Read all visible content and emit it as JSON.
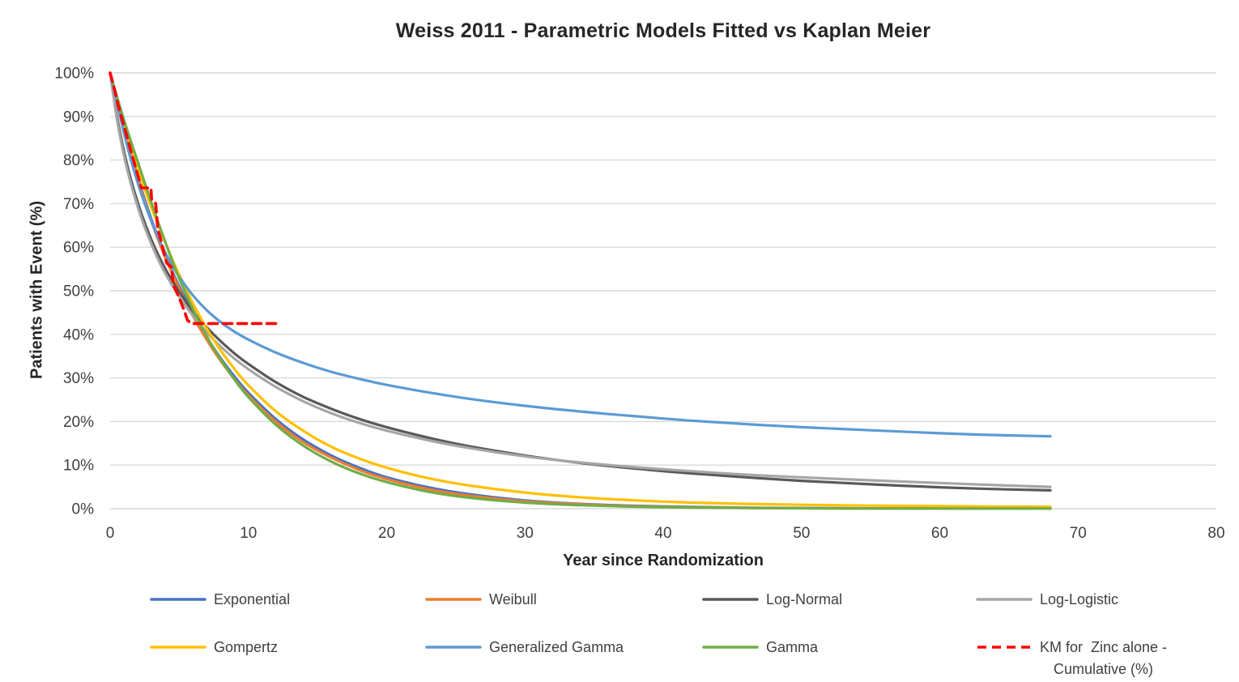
{
  "chart_data": {
    "type": "line",
    "title": "Weiss 2011 - Parametric Models Fitted vs Kaplan Meier",
    "xlabel": "Year since Randomization",
    "ylabel": "Patients with Event (%)",
    "xlim": [
      0,
      80
    ],
    "ylim": [
      0,
      100
    ],
    "x_ticks": [
      0,
      10,
      20,
      30,
      40,
      50,
      60,
      70,
      80
    ],
    "x_tick_labels": [
      "0",
      "10",
      "20",
      "30",
      "40",
      "50",
      "60",
      "70",
      "80"
    ],
    "y_ticks": [
      0,
      10,
      20,
      30,
      40,
      50,
      60,
      70,
      80,
      90,
      100
    ],
    "y_tick_labels": [
      "0%",
      "10%",
      "20%",
      "30%",
      "40%",
      "50%",
      "60%",
      "70%",
      "80%",
      "90%",
      "100%"
    ],
    "grid": "horizontal-only",
    "gridline_color": "#D9D9D9",
    "legend_position": "bottom",
    "series": [
      {
        "name": "Exponential",
        "color": "#4472C4",
        "width": 3.2,
        "smooth": true,
        "points": [
          [
            0,
            100
          ],
          [
            0.5,
            93.5
          ],
          [
            1,
            87
          ],
          [
            1.5,
            81.3
          ],
          [
            2,
            76
          ],
          [
            2.5,
            71
          ],
          [
            3,
            66.3
          ],
          [
            3.5,
            62
          ],
          [
            4,
            58
          ],
          [
            4.5,
            54.4
          ],
          [
            5,
            51
          ],
          [
            6,
            44.8
          ],
          [
            7,
            39.3
          ],
          [
            8,
            34.5
          ],
          [
            9,
            30.3
          ],
          [
            10,
            26.6
          ],
          [
            12,
            20.5
          ],
          [
            14,
            15.8
          ],
          [
            16,
            12.2
          ],
          [
            18,
            9.4
          ],
          [
            20,
            7.2
          ],
          [
            23,
            4.9
          ],
          [
            26,
            3.3
          ],
          [
            30,
            1.9
          ],
          [
            34,
            1.1
          ],
          [
            38,
            0.65
          ],
          [
            42,
            0.4
          ],
          [
            46,
            0.23
          ],
          [
            50,
            0.14
          ],
          [
            55,
            0.07
          ],
          [
            60,
            0.04
          ],
          [
            68,
            0.02
          ]
        ]
      },
      {
        "name": "Weibull",
        "color": "#ED7D31",
        "width": 3.2,
        "smooth": true,
        "points": [
          [
            0,
            100
          ],
          [
            0.5,
            93.2
          ],
          [
            1,
            86.6
          ],
          [
            1.5,
            80.9
          ],
          [
            2,
            75.5
          ],
          [
            2.5,
            70.5
          ],
          [
            3,
            65.8
          ],
          [
            3.5,
            61.5
          ],
          [
            4,
            57.5
          ],
          [
            4.5,
            53.9
          ],
          [
            5,
            50.5
          ],
          [
            6,
            44.2
          ],
          [
            7,
            38.7
          ],
          [
            8,
            33.9
          ],
          [
            9,
            29.7
          ],
          [
            10,
            26
          ],
          [
            12,
            19.9
          ],
          [
            14,
            15.2
          ],
          [
            16,
            11.7
          ],
          [
            18,
            8.9
          ],
          [
            20,
            6.8
          ],
          [
            23,
            4.5
          ],
          [
            26,
            3
          ],
          [
            30,
            1.7
          ],
          [
            34,
            1
          ],
          [
            38,
            0.55
          ],
          [
            42,
            0.32
          ],
          [
            46,
            0.19
          ],
          [
            50,
            0.11
          ],
          [
            55,
            0.05
          ],
          [
            60,
            0.03
          ],
          [
            68,
            0.01
          ]
        ]
      },
      {
        "name": "Log-Normal",
        "color": "#595959",
        "width": 3.2,
        "smooth": true,
        "points": [
          [
            0,
            100
          ],
          [
            0.5,
            90
          ],
          [
            1,
            82
          ],
          [
            1.5,
            75.6
          ],
          [
            2,
            70.2
          ],
          [
            2.5,
            65.6
          ],
          [
            3,
            61.6
          ],
          [
            3.5,
            58.1
          ],
          [
            4,
            55
          ],
          [
            4.5,
            52.3
          ],
          [
            5,
            49.8
          ],
          [
            6,
            45.3
          ],
          [
            7,
            41.6
          ],
          [
            8,
            38.4
          ],
          [
            9,
            35.6
          ],
          [
            10,
            33.2
          ],
          [
            12,
            29
          ],
          [
            14,
            25.6
          ],
          [
            16,
            22.9
          ],
          [
            18,
            20.6
          ],
          [
            20,
            18.7
          ],
          [
            23,
            16.3
          ],
          [
            26,
            14.3
          ],
          [
            30,
            12.2
          ],
          [
            34,
            10.5
          ],
          [
            38,
            9.2
          ],
          [
            42,
            8.1
          ],
          [
            46,
            7.2
          ],
          [
            50,
            6.4
          ],
          [
            55,
            5.6
          ],
          [
            60,
            4.9
          ],
          [
            64,
            4.5
          ],
          [
            68,
            4.2
          ]
        ]
      },
      {
        "name": "Log-Logistic",
        "color": "#A6A6A6",
        "width": 3.2,
        "smooth": true,
        "points": [
          [
            0,
            100
          ],
          [
            0.5,
            89.3
          ],
          [
            1,
            81
          ],
          [
            1.5,
            74.6
          ],
          [
            2,
            69.2
          ],
          [
            2.5,
            64.6
          ],
          [
            3,
            60.6
          ],
          [
            3.5,
            57
          ],
          [
            4,
            53.9
          ],
          [
            4.5,
            51.2
          ],
          [
            5,
            48.7
          ],
          [
            6,
            44.2
          ],
          [
            7,
            40.4
          ],
          [
            8,
            37.2
          ],
          [
            9,
            34.4
          ],
          [
            10,
            32
          ],
          [
            12,
            27.9
          ],
          [
            14,
            24.6
          ],
          [
            16,
            21.9
          ],
          [
            18,
            19.7
          ],
          [
            20,
            17.9
          ],
          [
            23,
            15.7
          ],
          [
            26,
            13.9
          ],
          [
            30,
            12
          ],
          [
            34,
            10.6
          ],
          [
            38,
            9.5
          ],
          [
            42,
            8.6
          ],
          [
            46,
            7.8
          ],
          [
            50,
            7.2
          ],
          [
            55,
            6.5
          ],
          [
            60,
            5.9
          ],
          [
            64,
            5.4
          ],
          [
            68,
            5
          ]
        ]
      },
      {
        "name": "Gompertz",
        "color": "#FFC000",
        "width": 3.2,
        "smooth": true,
        "points": [
          [
            0,
            100
          ],
          [
            0.5,
            94
          ],
          [
            1,
            88.2
          ],
          [
            1.5,
            83
          ],
          [
            2,
            78
          ],
          [
            2.5,
            73.4
          ],
          [
            3,
            69
          ],
          [
            3.5,
            64.9
          ],
          [
            4,
            61
          ],
          [
            4.5,
            57.2
          ],
          [
            5,
            53.6
          ],
          [
            6,
            47
          ],
          [
            7,
            41.3
          ],
          [
            8,
            36.3
          ],
          [
            9,
            32
          ],
          [
            10,
            28.3
          ],
          [
            12,
            22.3
          ],
          [
            14,
            17.8
          ],
          [
            16,
            14.2
          ],
          [
            18,
            11.5
          ],
          [
            20,
            9.4
          ],
          [
            23,
            7
          ],
          [
            26,
            5.3
          ],
          [
            30,
            3.7
          ],
          [
            34,
            2.6
          ],
          [
            38,
            1.9
          ],
          [
            42,
            1.4
          ],
          [
            46,
            1.1
          ],
          [
            50,
            0.9
          ],
          [
            55,
            0.7
          ],
          [
            60,
            0.6
          ],
          [
            64,
            0.5
          ],
          [
            68,
            0.45
          ]
        ]
      },
      {
        "name": "Generalized Gamma",
        "color": "#5B9BD5",
        "width": 3.2,
        "smooth": true,
        "points": [
          [
            0,
            100
          ],
          [
            0.5,
            93.2
          ],
          [
            1,
            86.2
          ],
          [
            1.5,
            80.1
          ],
          [
            2,
            74.7
          ],
          [
            2.5,
            70
          ],
          [
            3,
            65.8
          ],
          [
            3.5,
            62
          ],
          [
            4,
            58.7
          ],
          [
            4.5,
            55.8
          ],
          [
            5,
            53.2
          ],
          [
            6,
            48.9
          ],
          [
            7,
            45.5
          ],
          [
            8,
            42.8
          ],
          [
            9,
            40.6
          ],
          [
            10,
            38.8
          ],
          [
            12,
            35.8
          ],
          [
            14,
            33.4
          ],
          [
            16,
            31.4
          ],
          [
            18,
            29.8
          ],
          [
            20,
            28.4
          ],
          [
            23,
            26.7
          ],
          [
            26,
            25.2
          ],
          [
            30,
            23.6
          ],
          [
            34,
            22.3
          ],
          [
            38,
            21.2
          ],
          [
            42,
            20.2
          ],
          [
            46,
            19.4
          ],
          [
            50,
            18.7
          ],
          [
            55,
            18
          ],
          [
            60,
            17.3
          ],
          [
            64,
            16.9
          ],
          [
            68,
            16.6
          ]
        ]
      },
      {
        "name": "Gamma",
        "color": "#70AD47",
        "width": 3.2,
        "smooth": true,
        "points": [
          [
            0,
            100
          ],
          [
            0.5,
            94.5
          ],
          [
            1,
            89.2
          ],
          [
            1.5,
            84.3
          ],
          [
            2,
            79.6
          ],
          [
            2.5,
            74.8
          ],
          [
            3,
            70.1
          ],
          [
            3.5,
            65.5
          ],
          [
            4,
            61.1
          ],
          [
            4.5,
            56.8
          ],
          [
            5,
            52.8
          ],
          [
            6,
            45.7
          ],
          [
            7,
            39.5
          ],
          [
            8,
            34.2
          ],
          [
            9,
            29.6
          ],
          [
            10,
            25.6
          ],
          [
            12,
            19.2
          ],
          [
            14,
            14.4
          ],
          [
            16,
            10.8
          ],
          [
            18,
            8.1
          ],
          [
            20,
            6.1
          ],
          [
            23,
            3.9
          ],
          [
            26,
            2.5
          ],
          [
            30,
            1.4
          ],
          [
            34,
            0.8
          ],
          [
            38,
            0.45
          ],
          [
            42,
            0.26
          ],
          [
            46,
            0.15
          ],
          [
            50,
            0.09
          ],
          [
            55,
            0.04
          ],
          [
            60,
            0.02
          ],
          [
            68,
            0.01
          ]
        ]
      },
      {
        "name": "KM for  Zinc alone -\nCumulative (%)",
        "color": "#FF0000",
        "width": 3.6,
        "smooth": false,
        "dash": [
          11,
          7
        ],
        "points": [
          [
            0,
            100
          ],
          [
            0.25,
            97
          ],
          [
            0.55,
            93
          ],
          [
            0.85,
            89.5
          ],
          [
            1.2,
            85.5
          ],
          [
            1.6,
            81
          ],
          [
            2,
            76.5
          ],
          [
            2.2,
            74.2
          ],
          [
            2.25,
            73.6
          ],
          [
            2.95,
            73.6
          ],
          [
            3,
            71
          ],
          [
            3.3,
            70
          ],
          [
            3.45,
            64
          ],
          [
            3.6,
            62.5
          ],
          [
            3.95,
            58
          ],
          [
            4.1,
            56.3
          ],
          [
            4.45,
            55.4
          ],
          [
            4.55,
            51.5
          ],
          [
            5,
            48.3
          ],
          [
            5.35,
            45.5
          ],
          [
            5.6,
            43.2
          ],
          [
            5.9,
            42.5
          ],
          [
            12.2,
            42.5
          ]
        ]
      }
    ]
  }
}
